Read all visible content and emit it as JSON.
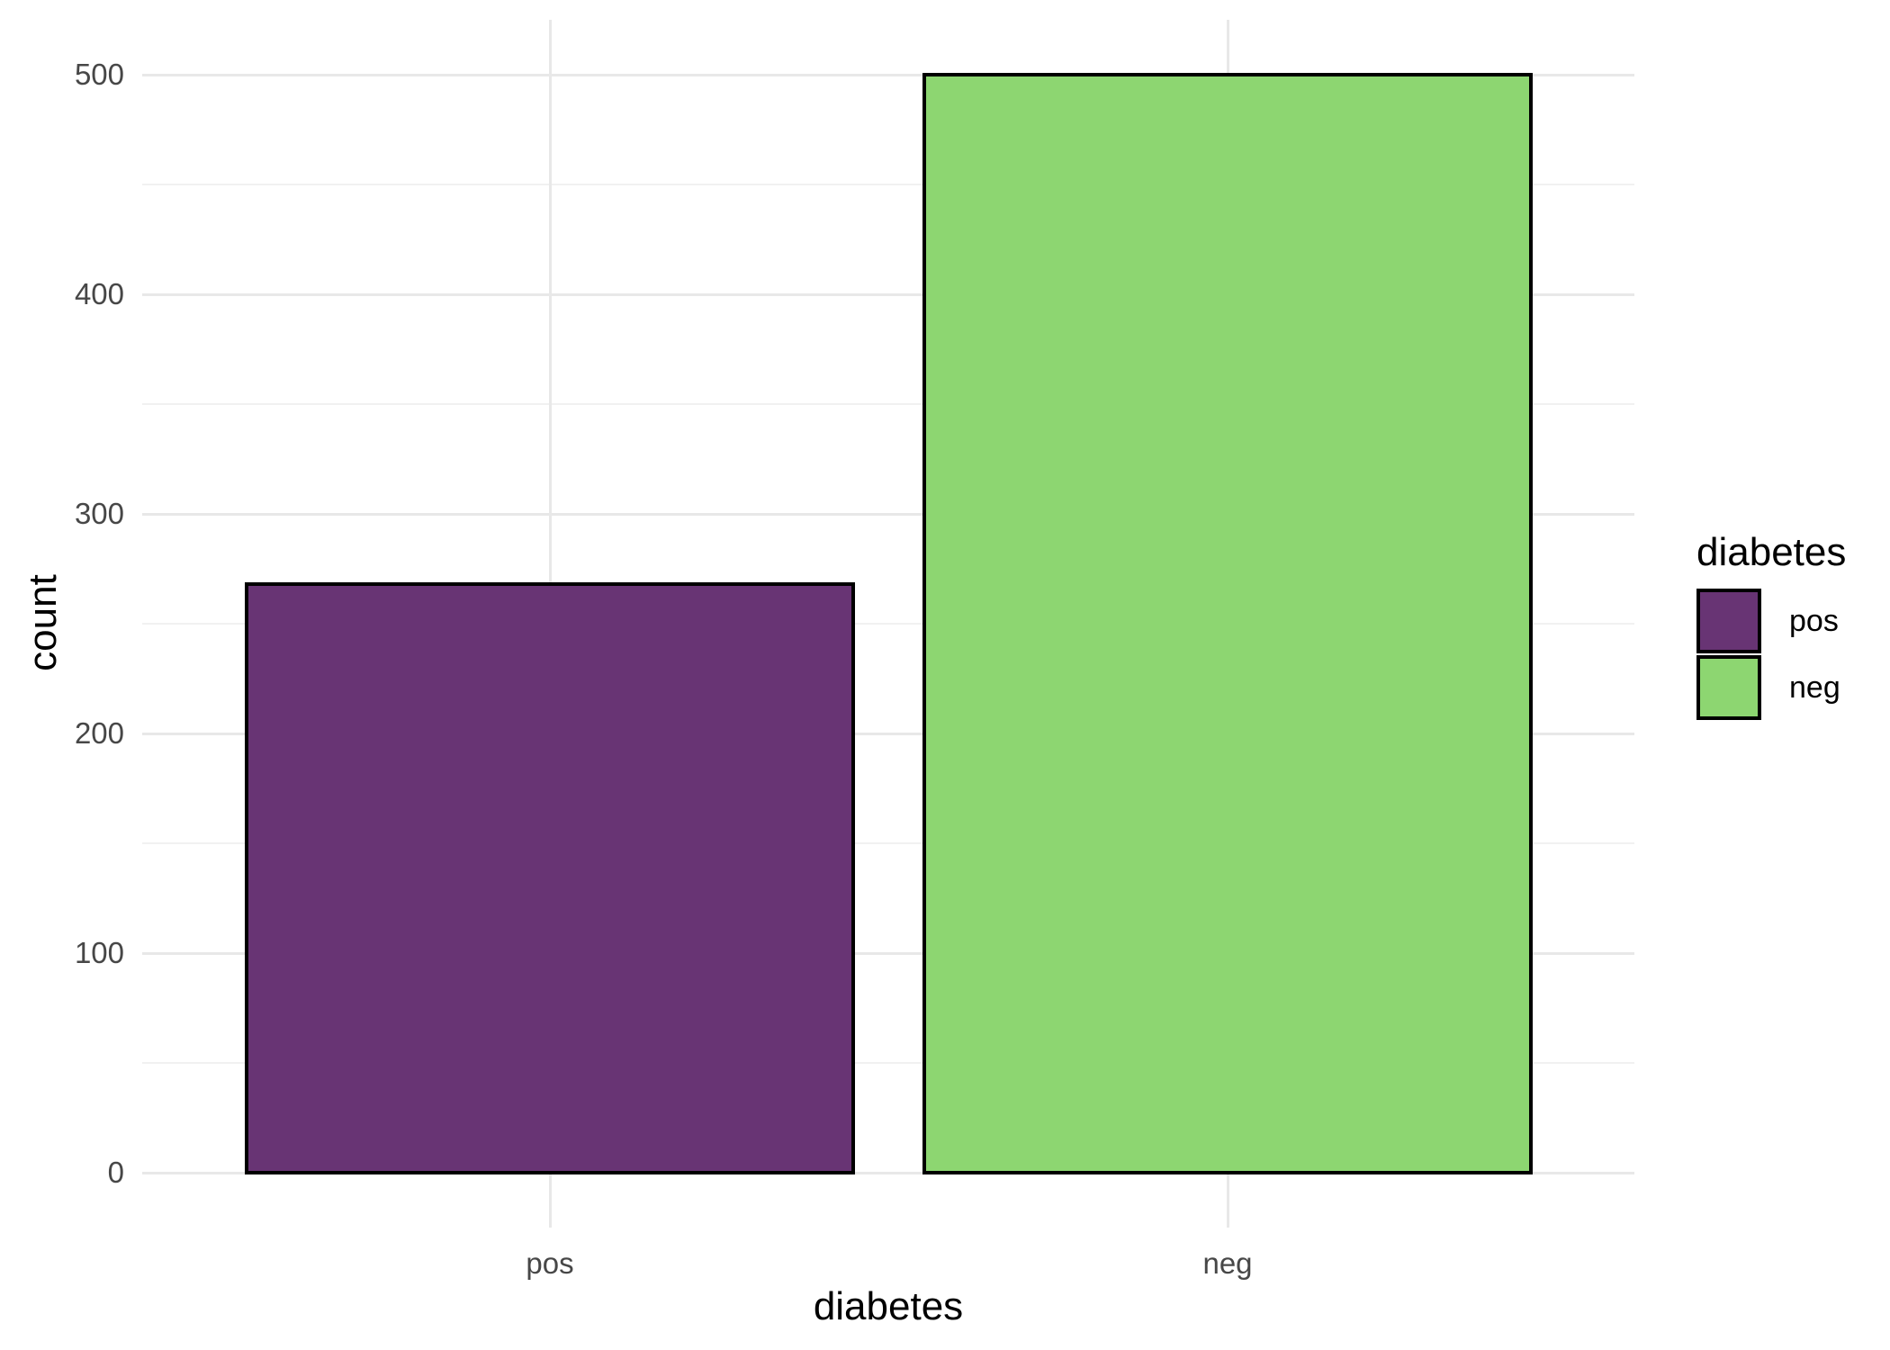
{
  "figure": {
    "x_axis_title": "diabetes",
    "y_axis_title": "count",
    "legend_title": "diabetes"
  },
  "chart_data": {
    "type": "bar",
    "title": "",
    "xlabel": "diabetes",
    "ylabel": "count",
    "categories": [
      "pos",
      "neg"
    ],
    "values": [
      268,
      500
    ],
    "bar_colors": [
      "#683474",
      "#8dd671"
    ],
    "bar_border_color": "#000000",
    "ylim": [
      0,
      500
    ],
    "y_major_ticks": [
      0,
      100,
      200,
      300,
      400,
      500
    ],
    "y_minor_ticks": [
      50,
      150,
      250,
      350,
      450
    ],
    "grid": true,
    "legend": {
      "title": "diabetes",
      "position": "right",
      "items": [
        {
          "label": "pos",
          "color": "#683474"
        },
        {
          "label": "neg",
          "color": "#8dd671"
        }
      ]
    },
    "style": {
      "background": "#ffffff",
      "grid_major_color": "#e8e8e8",
      "grid_minor_color": "#f1f1f1",
      "tick_text_color": "#474747",
      "title_text_color": "#000000"
    }
  }
}
